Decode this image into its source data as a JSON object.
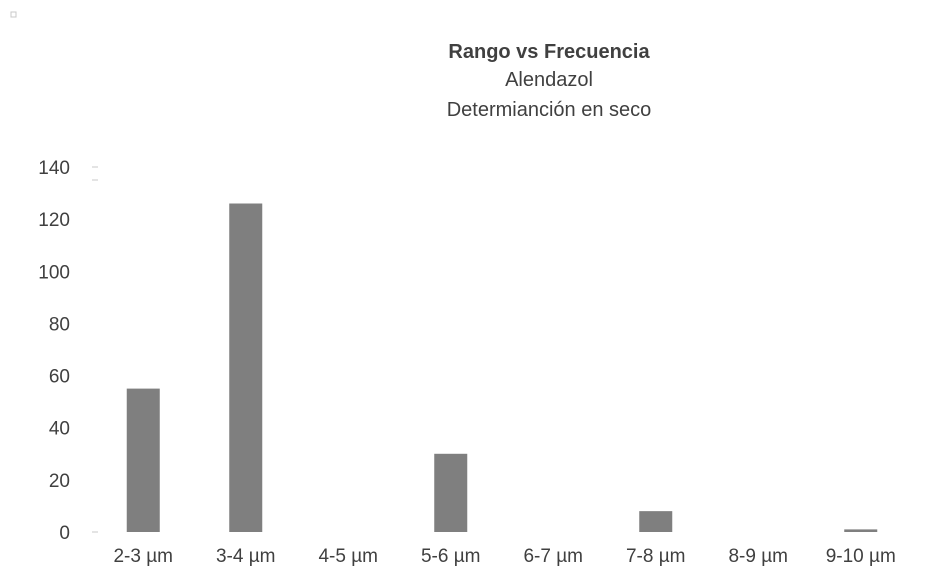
{
  "chart_data": {
    "type": "bar",
    "title": "Rango vs Frecuencia",
    "subtitle_lines": [
      "Alendazol",
      "Determianción en seco"
    ],
    "categories": [
      "2-3 µm",
      "3-4 µm",
      "4-5 µm",
      "5-6 µm",
      "6-7 µm",
      "7-8 µm",
      "8-9 µm",
      "9-10 µm"
    ],
    "values": [
      55,
      126,
      0,
      30,
      0,
      8,
      0,
      1
    ],
    "ylim": [
      0,
      140
    ],
    "yticks": [
      0,
      20,
      40,
      60,
      80,
      100,
      120,
      140
    ],
    "grid": false,
    "legend": "none",
    "bar_color": "#7f7f7f",
    "text_color": "#404040"
  }
}
